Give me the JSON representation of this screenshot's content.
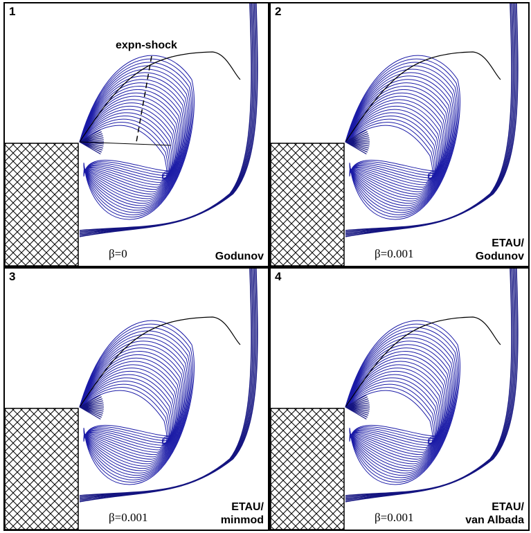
{
  "panels": [
    {
      "number": "1",
      "beta": "β=0",
      "method_lines": [
        "",
        "Godunov"
      ],
      "annotation": "expn-shock"
    },
    {
      "number": "2",
      "beta": "β=0.001",
      "method_lines": [
        "ETAU/",
        "Godunov"
      ]
    },
    {
      "number": "3",
      "beta": "β=0.001",
      "method_lines": [
        "ETAU/",
        "minmod"
      ]
    },
    {
      "number": "4",
      "beta": "β=0.001",
      "method_lines": [
        "ETAU/",
        "van Albada"
      ]
    }
  ],
  "colors": {
    "contour": "#1a1aa6",
    "shock": "#141480",
    "frame": "#000000"
  }
}
